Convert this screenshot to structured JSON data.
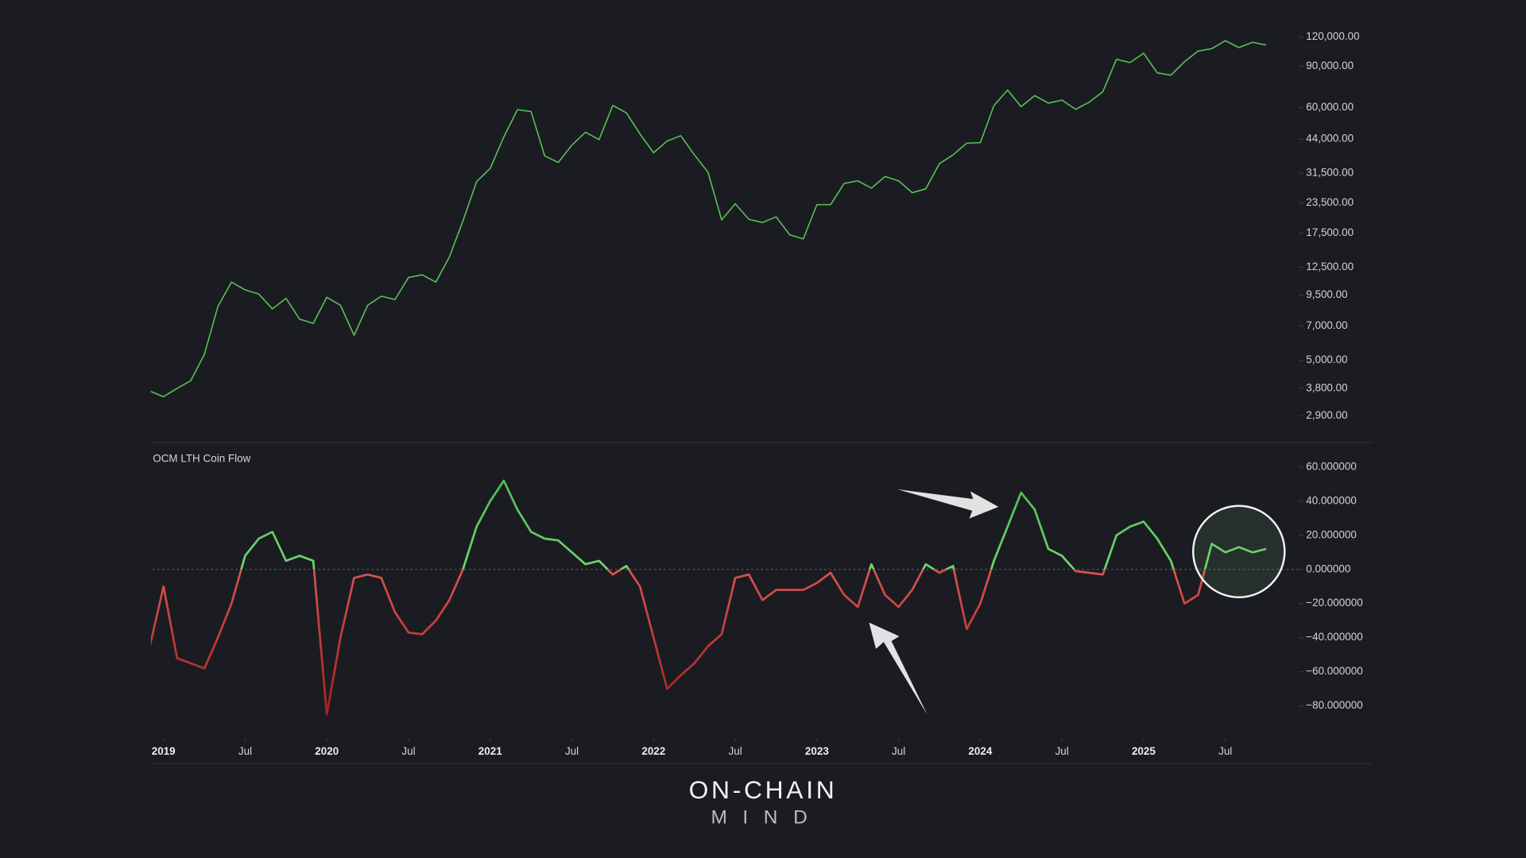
{
  "chart_data": [
    {
      "type": "line",
      "log_scale": true,
      "color": "#57c257",
      "x": [
        "2018-12",
        "2019-01",
        "2019-02",
        "2019-03",
        "2019-04",
        "2019-05",
        "2019-06",
        "2019-07",
        "2019-08",
        "2019-09",
        "2019-10",
        "2019-11",
        "2019-12",
        "2020-01",
        "2020-02",
        "2020-03",
        "2020-04",
        "2020-05",
        "2020-06",
        "2020-07",
        "2020-08",
        "2020-09",
        "2020-10",
        "2020-11",
        "2020-12",
        "2021-01",
        "2021-02",
        "2021-03",
        "2021-04",
        "2021-05",
        "2021-06",
        "2021-07",
        "2021-08",
        "2021-09",
        "2021-10",
        "2021-11",
        "2021-12",
        "2022-01",
        "2022-02",
        "2022-03",
        "2022-04",
        "2022-05",
        "2022-06",
        "2022-07",
        "2022-08",
        "2022-09",
        "2022-10",
        "2022-11",
        "2022-12",
        "2023-01",
        "2023-02",
        "2023-03",
        "2023-04",
        "2023-05",
        "2023-06",
        "2023-07",
        "2023-08",
        "2023-09",
        "2023-10",
        "2023-11",
        "2023-12",
        "2024-01",
        "2024-02",
        "2024-03",
        "2024-04",
        "2024-05",
        "2024-06",
        "2024-07",
        "2024-08",
        "2024-09",
        "2024-10",
        "2024-11",
        "2024-12",
        "2025-01",
        "2025-02",
        "2025-03",
        "2025-04",
        "2025-05",
        "2025-06",
        "2025-07",
        "2025-08",
        "2025-09",
        "2025-10"
      ],
      "values": [
        3700,
        3500,
        3800,
        4100,
        5300,
        8500,
        10800,
        10000,
        9600,
        8300,
        9200,
        7500,
        7200,
        9300,
        8600,
        6400,
        8600,
        9400,
        9100,
        11300,
        11600,
        10800,
        13800,
        19700,
        29000,
        33000,
        45000,
        58800,
        57700,
        37300,
        35000,
        41500,
        47100,
        43800,
        61300,
        57000,
        46300,
        38500,
        43200,
        45500,
        37700,
        31800,
        19900,
        23300,
        20000,
        19400,
        20500,
        17200,
        16500,
        23100,
        23100,
        28500,
        29200,
        27200,
        30500,
        29200,
        26000,
        27000,
        34600,
        37700,
        42300,
        42500,
        61200,
        71300,
        60600,
        67500,
        62700,
        64600,
        59000,
        63300,
        70200,
        96400,
        93400,
        102400,
        84400,
        82500,
        94200,
        104600,
        107100,
        115800,
        108200,
        114000,
        111000
      ],
      "xlim": [
        "2018-12",
        "2025-12"
      ],
      "ylim": [
        2500,
        140000
      ],
      "yticks": [
        {
          "value": 120000,
          "label": "120,000.00"
        },
        {
          "value": 90000,
          "label": "90,000.00"
        },
        {
          "value": 60000,
          "label": "60,000.00"
        },
        {
          "value": 44000,
          "label": "44,000.00"
        },
        {
          "value": 31500,
          "label": "31,500.00"
        },
        {
          "value": 23500,
          "label": "23,500.00"
        },
        {
          "value": 17500,
          "label": "17,500.00"
        },
        {
          "value": 12500,
          "label": "12,500.00"
        },
        {
          "value": 9500,
          "label": "9,500.00"
        },
        {
          "value": 7000,
          "label": "7,000.00"
        },
        {
          "value": 5000,
          "label": "5,000.00"
        },
        {
          "value": 3800,
          "label": "3,800.00"
        },
        {
          "value": 2900,
          "label": "2,900.00"
        }
      ]
    },
    {
      "type": "line",
      "title": "OCM LTH Coin Flow",
      "positive_color": "#6fd66f",
      "negative_color": "#d9534f",
      "x": [
        "2018-12",
        "2019-01",
        "2019-02",
        "2019-03",
        "2019-04",
        "2019-05",
        "2019-06",
        "2019-07",
        "2019-08",
        "2019-09",
        "2019-10",
        "2019-11",
        "2019-12",
        "2020-01",
        "2020-02",
        "2020-03",
        "2020-04",
        "2020-05",
        "2020-06",
        "2020-07",
        "2020-08",
        "2020-09",
        "2020-10",
        "2020-11",
        "2020-12",
        "2021-01",
        "2021-02",
        "2021-03",
        "2021-04",
        "2021-05",
        "2021-06",
        "2021-07",
        "2021-08",
        "2021-09",
        "2021-10",
        "2021-11",
        "2021-12",
        "2022-01",
        "2022-02",
        "2022-03",
        "2022-04",
        "2022-05",
        "2022-06",
        "2022-07",
        "2022-08",
        "2022-09",
        "2022-10",
        "2022-11",
        "2022-12",
        "2023-01",
        "2023-02",
        "2023-03",
        "2023-04",
        "2023-05",
        "2023-06",
        "2023-07",
        "2023-08",
        "2023-09",
        "2023-10",
        "2023-11",
        "2023-12",
        "2024-01",
        "2024-02",
        "2024-03",
        "2024-04",
        "2024-05",
        "2024-06",
        "2024-07",
        "2024-08",
        "2024-09",
        "2024-10",
        "2024-11",
        "2024-12",
        "2025-01",
        "2025-02",
        "2025-03",
        "2025-04",
        "2025-05",
        "2025-06",
        "2025-07",
        "2025-08",
        "2025-09",
        "2025-10"
      ],
      "values": [
        -45,
        -10,
        -52,
        -55,
        -58,
        -40,
        -20,
        8,
        18,
        22,
        5,
        8,
        5,
        -85,
        -40,
        -5,
        -3,
        -5,
        -25,
        -37,
        -38,
        -30,
        -18,
        0,
        25,
        40,
        52,
        35,
        22,
        18,
        17,
        10,
        3,
        5,
        -3,
        2,
        -10,
        -40,
        -70,
        -62,
        -55,
        -45,
        -38,
        -5,
        -3,
        -18,
        -12,
        -12,
        -12,
        -8,
        -2,
        -15,
        -22,
        3,
        -15,
        -22,
        -12,
        3,
        -2,
        2,
        -35,
        -20,
        5,
        25,
        45,
        35,
        12,
        8,
        -1,
        -2,
        -3,
        20,
        25,
        28,
        18,
        5,
        -20,
        -15,
        15,
        10,
        13,
        10,
        12
      ],
      "xlim": [
        "2018-12",
        "2025-12"
      ],
      "ylim": [
        -95,
        68
      ],
      "yticks": [
        {
          "value": 60,
          "label": "60.000000"
        },
        {
          "value": 40,
          "label": "40.000000"
        },
        {
          "value": 20,
          "label": "20.000000"
        },
        {
          "value": 0,
          "label": "0.000000"
        },
        {
          "value": -20,
          "label": "−20.000000"
        },
        {
          "value": -40,
          "label": "−40.000000"
        },
        {
          "value": -60,
          "label": "−60.000000"
        },
        {
          "value": -80,
          "label": "−80.000000"
        }
      ],
      "xticks": [
        {
          "value": "2019-01",
          "label": "2019"
        },
        {
          "value": "2019-07",
          "label": "Jul"
        },
        {
          "value": "2020-01",
          "label": "2020"
        },
        {
          "value": "2020-07",
          "label": "Jul"
        },
        {
          "value": "2021-01",
          "label": "2021"
        },
        {
          "value": "2021-07",
          "label": "Jul"
        },
        {
          "value": "2022-01",
          "label": "2022"
        },
        {
          "value": "2022-07",
          "label": "Jul"
        },
        {
          "value": "2023-01",
          "label": "2023"
        },
        {
          "value": "2023-07",
          "label": "Jul"
        },
        {
          "value": "2024-01",
          "label": "2024"
        },
        {
          "value": "2024-07",
          "label": "Jul"
        },
        {
          "value": "2025-01",
          "label": "2025"
        },
        {
          "value": "2025-07",
          "label": "Jul"
        }
      ]
    }
  ],
  "watermark": [
    "ON-CHAIN",
    "MIND"
  ]
}
